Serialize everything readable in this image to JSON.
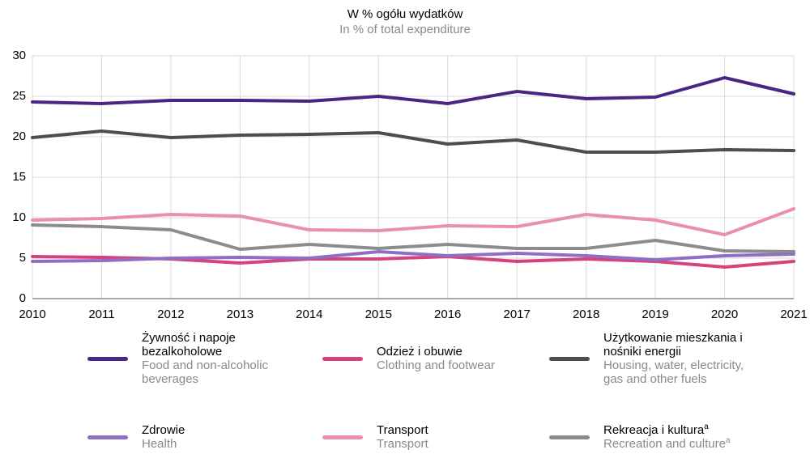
{
  "chart_data": {
    "type": "line",
    "title": "W % ogółu wydatków",
    "subtitle": "In % of total expenditure",
    "x": [
      2010,
      2011,
      2012,
      2013,
      2014,
      2015,
      2016,
      2017,
      2018,
      2019,
      2020,
      2021
    ],
    "xlim": [
      2010,
      2021
    ],
    "xticks": [
      2010,
      2011,
      2012,
      2013,
      2014,
      2015,
      2016,
      2017,
      2018,
      2019,
      2020,
      2021
    ],
    "ylim": [
      0,
      30
    ],
    "yticks": [
      0,
      5,
      10,
      15,
      20,
      25,
      30
    ],
    "grid": true,
    "series": [
      {
        "name": "Żywność i napoje bezalkoholowe",
        "name_en": "Food and non-alcoholic beverages",
        "color": "#4b2584",
        "values": [
          24.3,
          24.1,
          24.5,
          24.5,
          24.4,
          25.0,
          24.1,
          25.6,
          24.7,
          24.9,
          27.3,
          25.3
        ]
      },
      {
        "name": "Odzież i obuwie",
        "name_en": "Clothing and footwear",
        "color": "#d6427d",
        "values": [
          5.2,
          5.1,
          4.9,
          4.4,
          4.9,
          4.9,
          5.2,
          4.6,
          4.9,
          4.6,
          3.9,
          4.6
        ]
      },
      {
        "name": "Użytkowanie mieszkania i nośniki energii",
        "name_en": "Housing, water, electricity, gas and other fuels",
        "color": "#4d4d4d",
        "values": [
          19.9,
          20.7,
          19.9,
          20.2,
          20.3,
          20.5,
          19.1,
          19.6,
          18.1,
          18.1,
          18.4,
          18.3
        ]
      },
      {
        "name": "Zdrowie",
        "name_en": "Health",
        "color": "#8f6fc4",
        "values": [
          4.6,
          4.7,
          5.0,
          5.1,
          5.0,
          5.8,
          5.3,
          5.6,
          5.3,
          4.8,
          5.3,
          5.5
        ]
      },
      {
        "name": "Transport",
        "name_en": "Transport",
        "color": "#e98fb3",
        "values": [
          9.7,
          9.9,
          10.4,
          10.2,
          8.5,
          8.4,
          9.0,
          8.9,
          10.4,
          9.7,
          7.9,
          11.1
        ]
      },
      {
        "name": "Rekreacja i kultura",
        "name_en": "Recreation and culture",
        "footnote_mark": "a",
        "color": "#8c8c8c",
        "values": [
          9.1,
          8.9,
          8.5,
          6.1,
          6.7,
          6.2,
          6.7,
          6.2,
          6.2,
          7.2,
          5.9,
          5.8
        ]
      }
    ]
  }
}
